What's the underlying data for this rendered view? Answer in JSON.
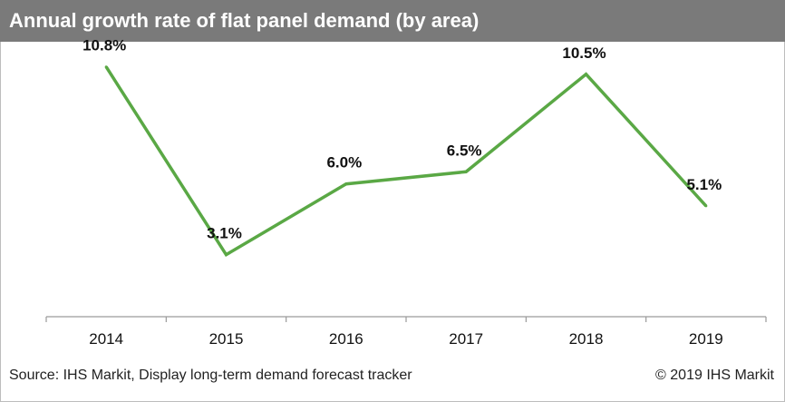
{
  "colors": {
    "header_bg": "#7a7a7a",
    "line": "#5aa845",
    "text": "#111111"
  },
  "chart_data": {
    "type": "line",
    "title": "Annual growth rate of flat panel demand (by area)",
    "categories": [
      "2014",
      "2015",
      "2016",
      "2017",
      "2018",
      "2019"
    ],
    "series": [
      {
        "name": "Annual growth rate",
        "values": [
          10.8,
          3.1,
          6.0,
          6.5,
          10.5,
          5.1
        ]
      }
    ],
    "data_labels": [
      "10.8%",
      "3.1%",
      "6.0%",
      "6.5%",
      "10.5%",
      "5.1%"
    ],
    "ylim": [
      0,
      12.5
    ],
    "xlabel": "",
    "ylabel": "",
    "grid": false
  },
  "footer": {
    "source": "Source: IHS Markit, Display long-term demand forecast tracker",
    "copyright": "© 2019 IHS Markit"
  }
}
